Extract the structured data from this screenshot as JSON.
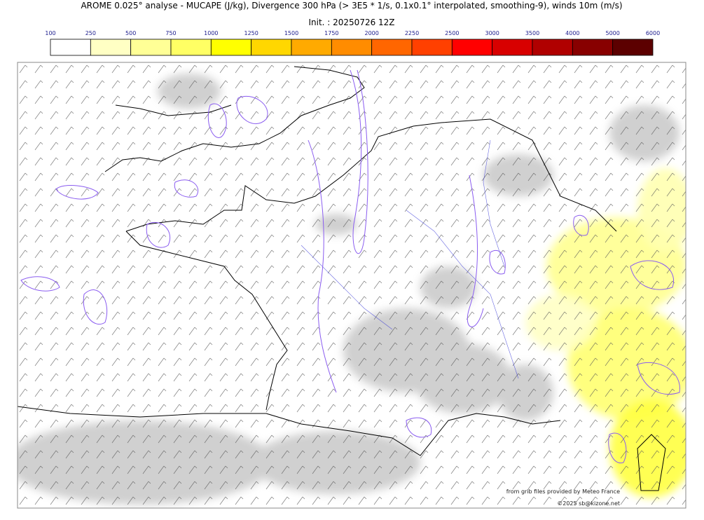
{
  "header": {
    "title": "AROME 0.025° analyse - MUCAPE (J/kg), Divergence 300 hPa (> 3E5 * 1/s, 0.1x0.1° interpolated, smoothing-9), winds 10m (m/s)",
    "init": "Init. : 20250726 12Z"
  },
  "colorbar": {
    "labels": [
      "100",
      "250",
      "500",
      "750",
      "1000",
      "1250",
      "1500",
      "1750",
      "2000",
      "2250",
      "2500",
      "3000",
      "3500",
      "4000",
      "5000",
      "6000"
    ],
    "colors": [
      "#ffffff",
      "#ffffc4",
      "#ffff96",
      "#ffff64",
      "#ffff00",
      "#ffd700",
      "#ffaa00",
      "#ff8c00",
      "#ff6600",
      "#ff4000",
      "#ff0000",
      "#d80000",
      "#b00000",
      "#880000",
      "#5c0000"
    ]
  },
  "credits": {
    "source": "from grib files provided by Meteo France",
    "copyright": "©2025 sb@kizone.net"
  }
}
